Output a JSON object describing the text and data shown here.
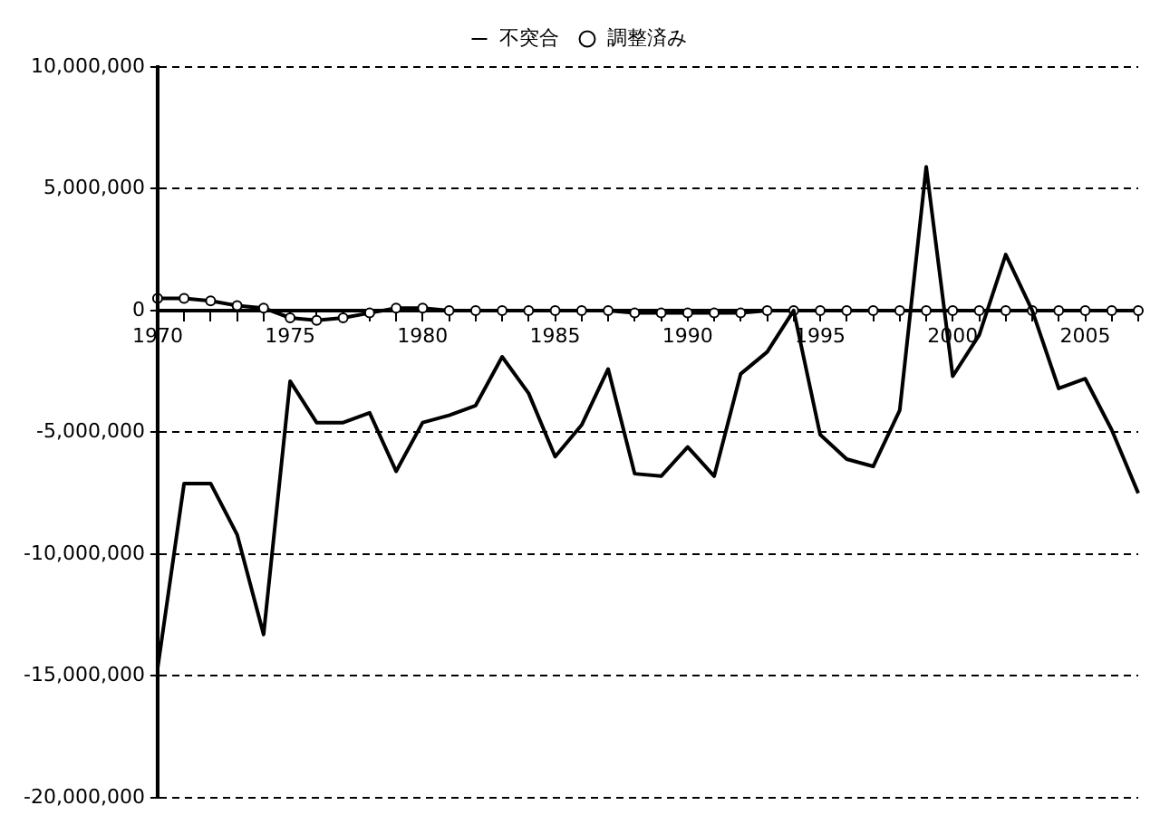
{
  "chart_data": {
    "type": "line",
    "categories": [
      "1970",
      null,
      null,
      null,
      null,
      "1975",
      null,
      null,
      null,
      null,
      "1980",
      null,
      null,
      null,
      null,
      "1985",
      null,
      null,
      null,
      null,
      "1990",
      null,
      null,
      null,
      null,
      "1995",
      null,
      null,
      null,
      null,
      "2000",
      null,
      null,
      null,
      null,
      "2005",
      null,
      null
    ],
    "series": [
      {
        "name": "不突合",
        "color": "#000000",
        "marker": "none",
        "values": [
          -14700000,
          -7100000,
          -7100000,
          -9200000,
          -13300000,
          -2900000,
          -4600000,
          -4600000,
          -4200000,
          -6600000,
          -4600000,
          -4300000,
          -3900000,
          -1900000,
          -3400000,
          -6000000,
          -4700000,
          -2400000,
          -6700000,
          -6800000,
          -5600000,
          -6800000,
          -2600000,
          -1700000,
          0,
          -5100000,
          -6100000,
          -6400000,
          -4100000,
          5900000,
          -2700000,
          -1000000,
          2300000,
          0,
          -3200000,
          -2800000,
          -4900000,
          -7500000
        ]
      },
      {
        "name": "調整済み",
        "color": "#000000",
        "marker": "circle",
        "values": [
          500000,
          500000,
          400000,
          200000,
          100000,
          -300000,
          -400000,
          -300000,
          -100000,
          100000,
          100000,
          0,
          0,
          0,
          0,
          0,
          0,
          0,
          -100000,
          -100000,
          -100000,
          -100000,
          -100000,
          0,
          0,
          0,
          0,
          0,
          0,
          0,
          0,
          0,
          0,
          0,
          0,
          0,
          0,
          0
        ]
      }
    ],
    "ylim": [
      -20000000,
      10000000
    ],
    "yticks": [
      {
        "value": -20000000,
        "label": "-20,000,000"
      },
      {
        "value": -15000000,
        "label": "-15,000,000"
      },
      {
        "value": -10000000,
        "label": "-10,000,000"
      },
      {
        "value": -5000000,
        "label": "-5,000,000"
      },
      {
        "value": 0,
        "label": "0"
      },
      {
        "value": 5000000,
        "label": "5,000,000"
      },
      {
        "value": 10000000,
        "label": "10,000,000"
      }
    ],
    "grid": "y",
    "legend": "top",
    "line_style": "solid"
  }
}
